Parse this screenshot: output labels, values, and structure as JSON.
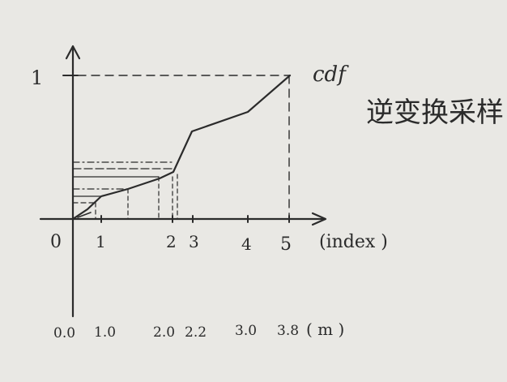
{
  "y_tick_top": "1",
  "cdf_label": "cdf",
  "title_cn": "逆变换采样",
  "origin_label": "0",
  "x_axis_label": "(index )",
  "index_ticks": [
    "1",
    "2",
    "3",
    "4",
    "5"
  ],
  "bottom_values": [
    "0.0",
    "1.0",
    "2.0",
    "2.2",
    "3.0",
    "3.8"
  ],
  "bottom_unit": "( m )"
}
